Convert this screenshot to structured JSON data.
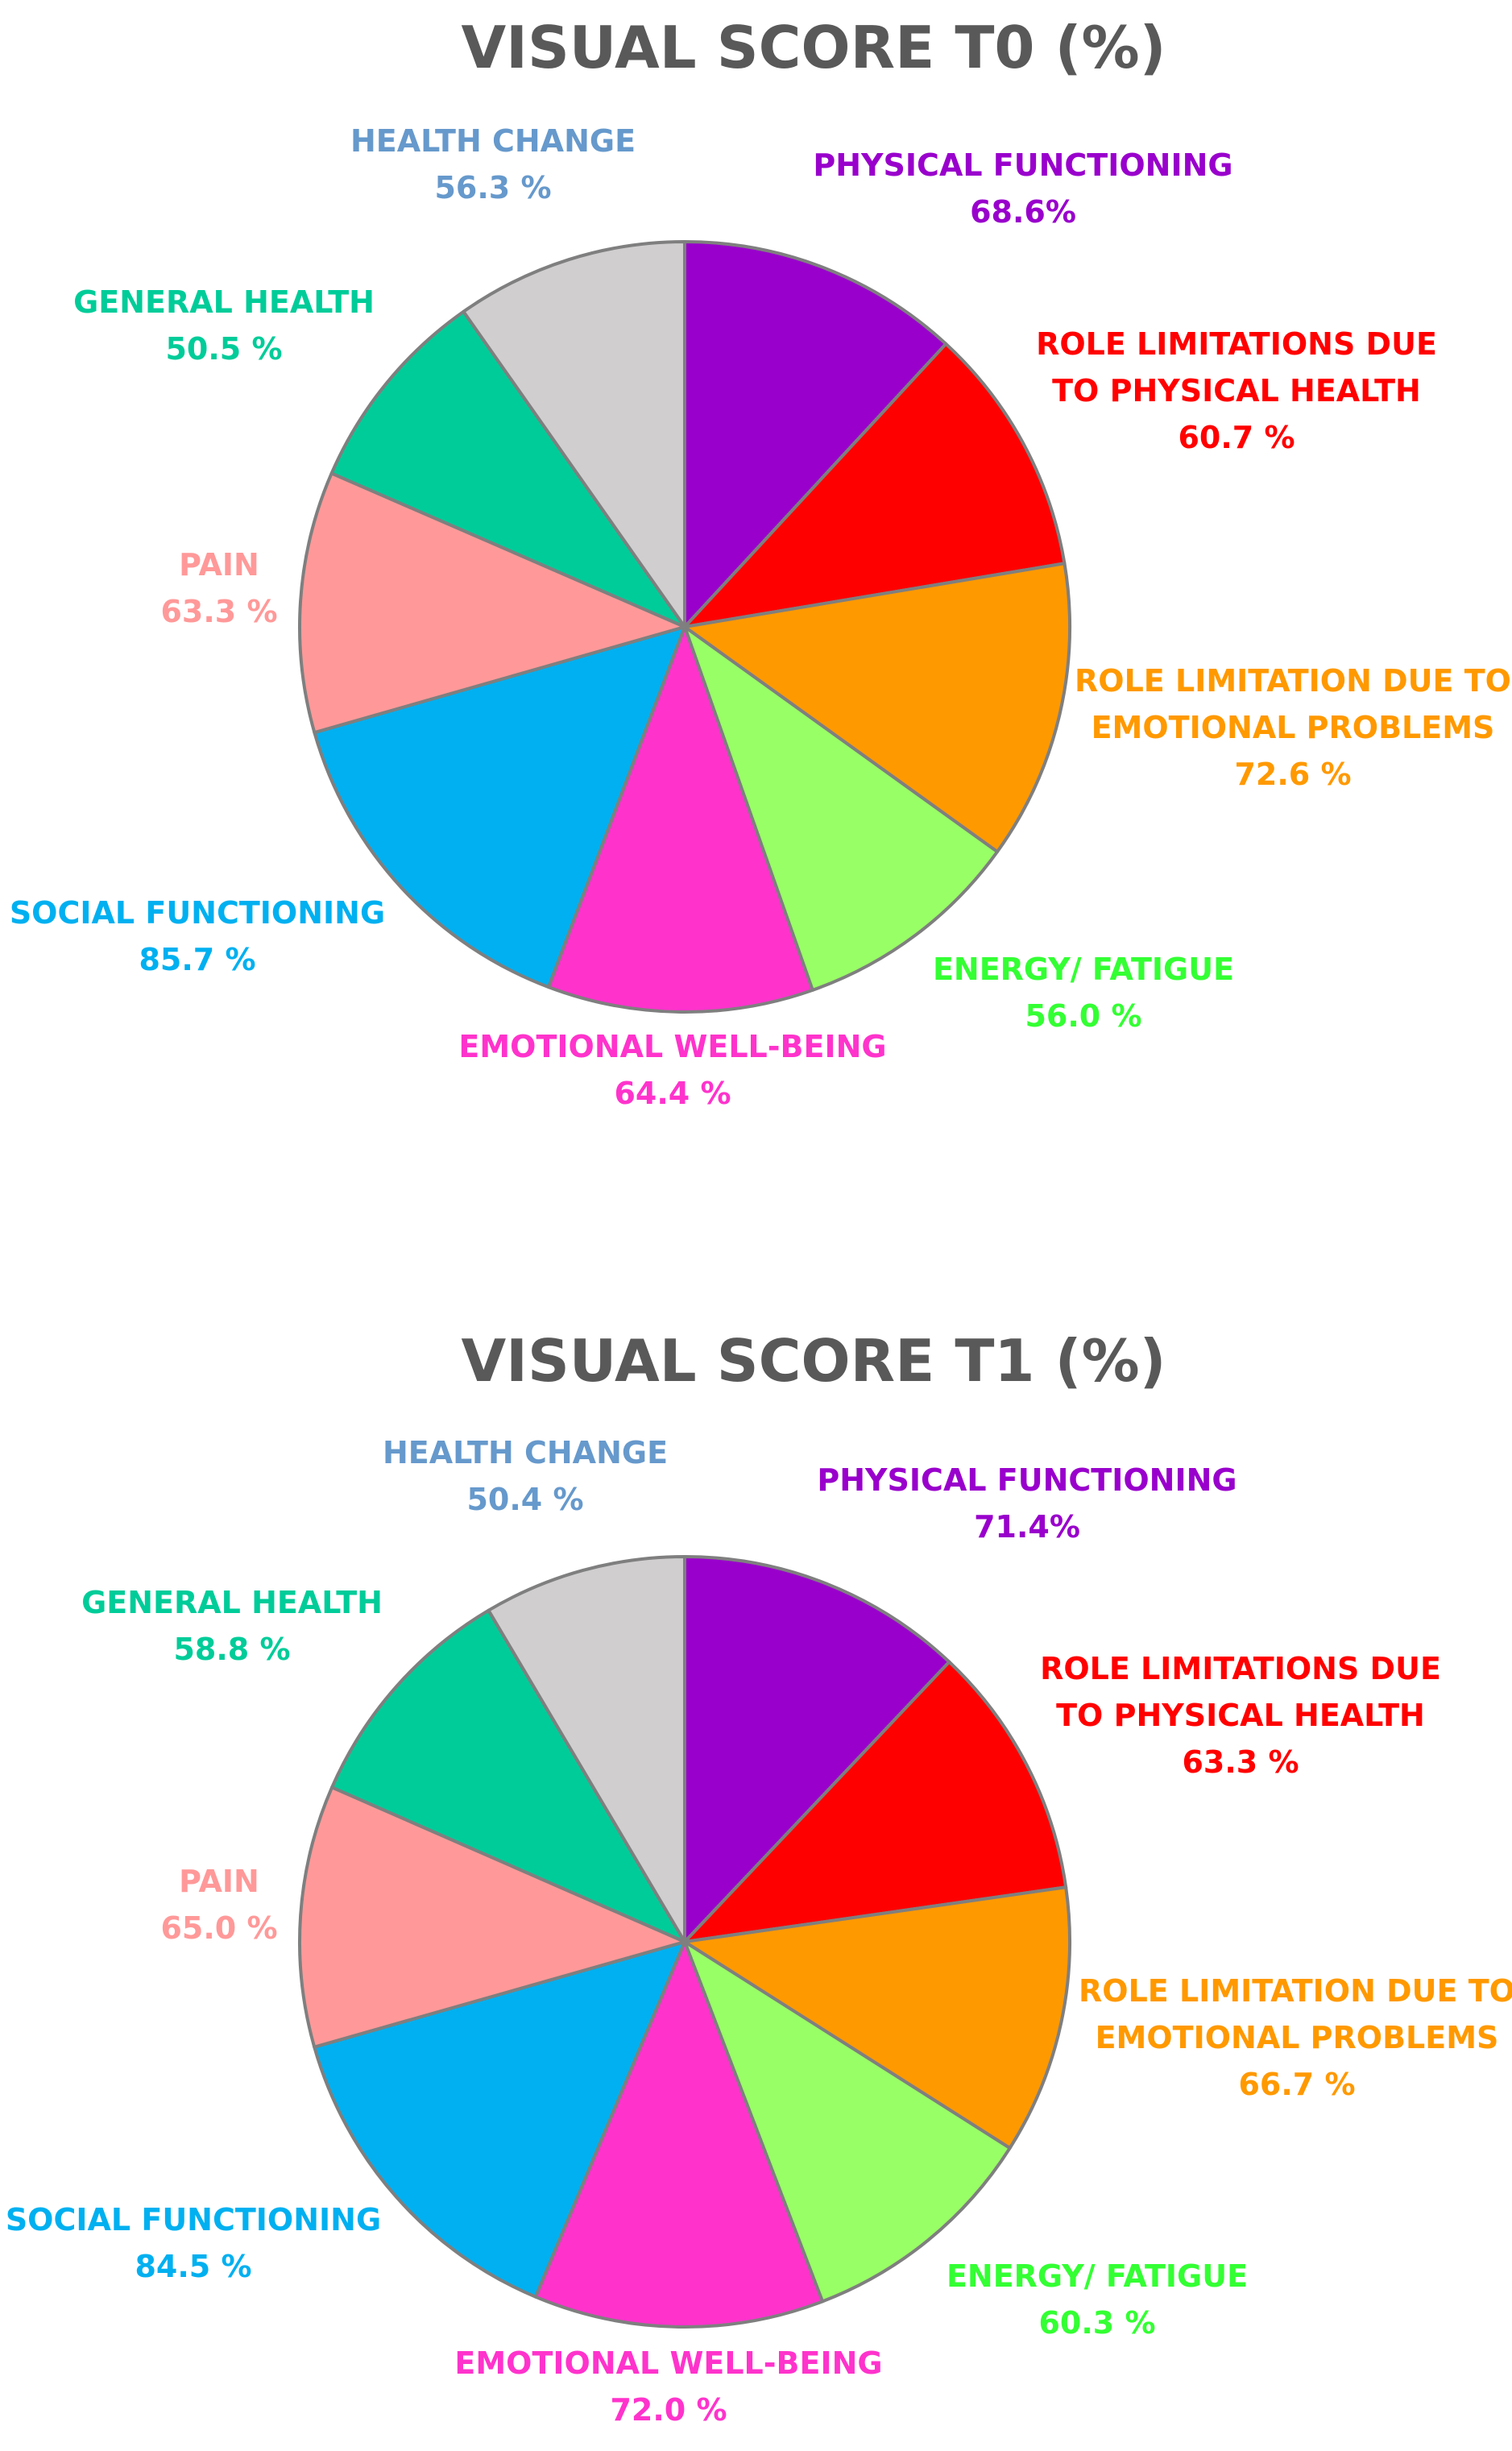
{
  "chart_data": [
    {
      "type": "pie",
      "title": "VISUAL SCORE T0 (%)",
      "slices": [
        {
          "category": "PHYSICAL FUNCTIONING",
          "label_lines": [
            "PHYSICAL FUNCTIONING"
          ],
          "value": 68.6,
          "value_label": "68.6%",
          "color": "#9900CC"
        },
        {
          "category": "ROLE LIMITATIONS DUE TO PHYSICAL HEALTH",
          "label_lines": [
            "ROLE LIMITATIONS DUE",
            "TO PHYSICAL HEALTH"
          ],
          "value": 60.7,
          "value_label": "60.7 %",
          "color": "#FF0000"
        },
        {
          "category": "ROLE LIMITATION DUE TO EMOTIONAL PROBLEMS",
          "label_lines": [
            "ROLE LIMITATION DUE TO",
            "EMOTIONAL PROBLEMS"
          ],
          "value": 72.6,
          "value_label": "72.6 %",
          "color": "#FF9900"
        },
        {
          "category": "ENERGY/ FATIGUE",
          "label_lines": [
            "ENERGY/ FATIGUE"
          ],
          "value": 56.0,
          "value_label": "56.0 %",
          "color": "#99FF66"
        },
        {
          "category": "EMOTIONAL WELL-BEING",
          "label_lines": [
            "EMOTIONAL WELL-BEING"
          ],
          "value": 64.4,
          "value_label": "64.4 %",
          "color": "#FF33CC"
        },
        {
          "category": "SOCIAL FUNCTIONING",
          "label_lines": [
            "SOCIAL FUNCTIONING"
          ],
          "value": 85.7,
          "value_label": "85.7 %",
          "color": "#00B0F0"
        },
        {
          "category": "PAIN",
          "label_lines": [
            "PAIN"
          ],
          "value": 63.3,
          "value_label": "63.3 %",
          "color": "#FF9999"
        },
        {
          "category": "GENERAL HEALTH",
          "label_lines": [
            "GENERAL HEALTH"
          ],
          "value": 50.5,
          "value_label": "50.5 %",
          "color": "#00CC99"
        },
        {
          "category": "HEALTH CHANGE",
          "label_lines": [
            "HEALTH CHANGE"
          ],
          "value": 56.3,
          "value_label": "56.3 %",
          "color": "#D0CECE"
        }
      ],
      "label_colors": [
        "#9900CC",
        "#FF0000",
        "#FF9900",
        "#33FF33",
        "#FF33CC",
        "#00B0F0",
        "#FF9999",
        "#00CC99",
        "#6699CC"
      ],
      "legend": "none"
    },
    {
      "type": "pie",
      "title": "VISUAL SCORE T1 (%)",
      "slices": [
        {
          "category": "PHYSICAL FUNCTIONING",
          "label_lines": [
            "PHYSICAL FUNCTIONING"
          ],
          "value": 71.4,
          "value_label": "71.4%",
          "color": "#9900CC"
        },
        {
          "category": "ROLE LIMITATIONS DUE TO PHYSICAL HEALTH",
          "label_lines": [
            "ROLE LIMITATIONS DUE",
            "TO PHYSICAL HEALTH"
          ],
          "value": 63.3,
          "value_label": "63.3 %",
          "color": "#FF0000"
        },
        {
          "category": "ROLE LIMITATION DUE TO EMOTIONAL PROBLEMS",
          "label_lines": [
            "ROLE LIMITATION DUE TO",
            "EMOTIONAL PROBLEMS"
          ],
          "value": 66.7,
          "value_label": "66.7 %",
          "color": "#FF9900"
        },
        {
          "category": "ENERGY/ FATIGUE",
          "label_lines": [
            "ENERGY/ FATIGUE"
          ],
          "value": 60.3,
          "value_label": "60.3 %",
          "color": "#99FF66"
        },
        {
          "category": "EMOTIONAL WELL-BEING",
          "label_lines": [
            "EMOTIONAL WELL-BEING"
          ],
          "value": 72.0,
          "value_label": "72.0 %",
          "color": "#FF33CC"
        },
        {
          "category": "SOCIAL FUNCTIONING",
          "label_lines": [
            "SOCIAL FUNCTIONING"
          ],
          "value": 84.5,
          "value_label": "84.5 %",
          "color": "#00B0F0"
        },
        {
          "category": "PAIN",
          "label_lines": [
            "PAIN"
          ],
          "value": 65.0,
          "value_label": "65.0 %",
          "color": "#FF9999"
        },
        {
          "category": "GENERAL HEALTH",
          "label_lines": [
            "GENERAL HEALTH"
          ],
          "value": 58.8,
          "value_label": "58.8 %",
          "color": "#00CC99"
        },
        {
          "category": "HEALTH CHANGE",
          "label_lines": [
            "HEALTH CHANGE"
          ],
          "value": 50.4,
          "value_label": "50.4 %",
          "color": "#D0CECE"
        }
      ],
      "label_colors": [
        "#9900CC",
        "#FF0000",
        "#FF9900",
        "#33FF33",
        "#FF33CC",
        "#00B0F0",
        "#FF9999",
        "#00CC99",
        "#6699CC"
      ],
      "legend": "none"
    }
  ]
}
